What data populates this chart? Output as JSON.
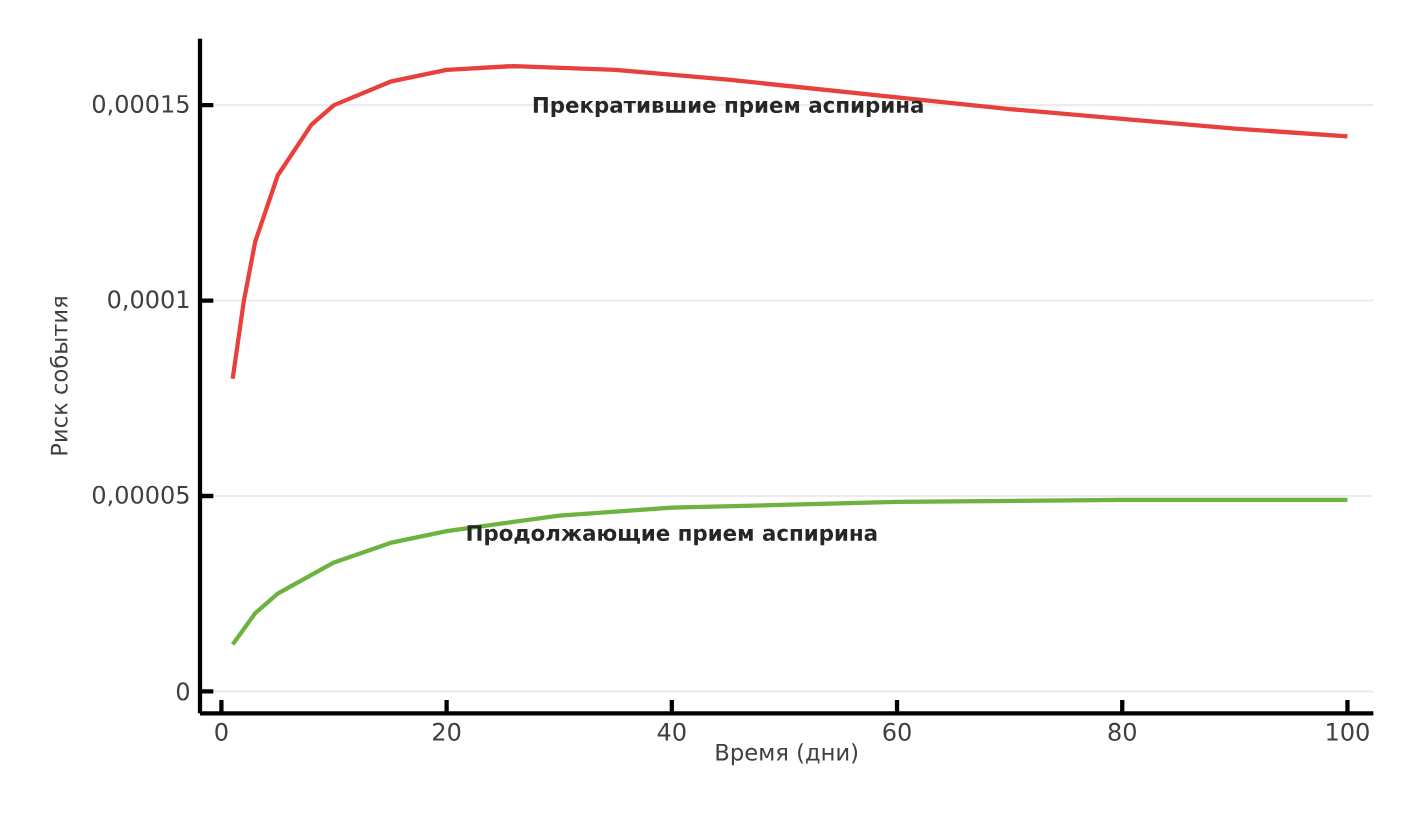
{
  "chart_data": {
    "type": "line",
    "xlabel": "Время (дни)",
    "ylabel": "Риск события",
    "xlim": [
      -1.9,
      102.3
    ],
    "ylim": [
      -5.6e-06,
      0.000167
    ],
    "xticks": [
      0,
      20,
      40,
      60,
      80,
      100
    ],
    "yticks": [
      {
        "value": 0,
        "label": "0"
      },
      {
        "value": 5e-05,
        "label": "0,00005"
      },
      {
        "value": 0.0001,
        "label": "0,0001"
      },
      {
        "value": 0.00015,
        "label": "0,00015"
      }
    ],
    "grid": "y",
    "legend": false,
    "marker": "none",
    "line_style": "solid",
    "series": [
      {
        "name": "Прекратившие прием аспирина",
        "color": "#e8413c",
        "x": [
          1,
          2,
          3,
          5,
          8,
          10,
          15,
          20,
          26,
          35,
          45,
          60,
          70,
          80,
          90,
          100
        ],
        "values": [
          8e-05,
          0.0001,
          0.000115,
          0.000132,
          0.000145,
          0.00015,
          0.000156,
          0.000159,
          0.00016,
          0.000159,
          0.0001565,
          0.000152,
          0.000149,
          0.0001465,
          0.000144,
          0.000142
        ]
      },
      {
        "name": "Продолжающие прием аспирина",
        "color": "#6db33f",
        "x": [
          1,
          3,
          5,
          10,
          15,
          20,
          30,
          40,
          60,
          80,
          100
        ],
        "values": [
          1.2e-05,
          2e-05,
          2.5e-05,
          3.3e-05,
          3.8e-05,
          4.1e-05,
          4.5e-05,
          4.7e-05,
          4.85e-05,
          4.9e-05,
          4.9e-05
        ]
      }
    ]
  }
}
